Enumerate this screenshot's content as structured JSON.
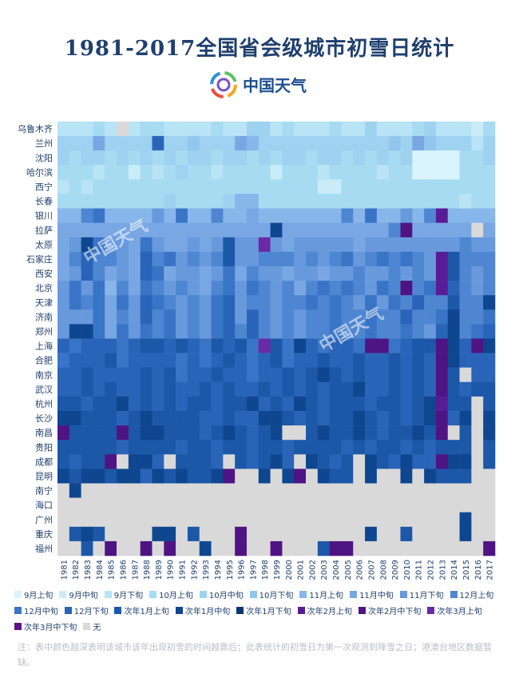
{
  "title": "1981-2017全国省会级城市初雪日统计",
  "brand": {
    "name": "中国天气",
    "logo_icon": "china-weather-logo-icon"
  },
  "note": "注：表中颜色越深表明该城市该年出现初雪的时间越靠后；此表统计的初雪日为第一次观测到降雪之日；港澳台地区数据暂缺。",
  "watermark": "中国天气",
  "chart_data": {
    "type": "heatmap",
    "title": "1981-2017全国省会级城市初雪日统计",
    "x": [
      1981,
      1982,
      1983,
      1984,
      1985,
      1986,
      1987,
      1988,
      1989,
      1990,
      1991,
      1992,
      1993,
      1994,
      1995,
      1996,
      1997,
      1998,
      1999,
      2000,
      2001,
      2002,
      2003,
      2004,
      2005,
      2006,
      2007,
      2008,
      2009,
      2010,
      2011,
      2012,
      2013,
      2014,
      2015,
      2016,
      2017
    ],
    "y": [
      "乌鲁木齐",
      "兰州",
      "沈阳",
      "哈尔滨",
      "西宁",
      "长春",
      "银川",
      "拉萨",
      "太原",
      "石家庄",
      "西安",
      "北京",
      "天津",
      "济南",
      "郑州",
      "上海",
      "合肥",
      "南京",
      "武汉",
      "杭州",
      "长沙",
      "南昌",
      "贵阳",
      "成都",
      "昆明",
      "南宁",
      "海口",
      "广州",
      "重庆",
      "福州"
    ],
    "categories": [
      "9月上旬",
      "9月中旬",
      "9月下旬",
      "10月上旬",
      "10月中旬",
      "10月下旬",
      "11月上旬",
      "11月中旬",
      "11月下旬",
      "12月上旬",
      "12月中旬",
      "12月下旬",
      "次年1月上旬",
      "次年1月中旬",
      "次年1月下旬",
      "次年2月上旬",
      "次年2月中下旬",
      "次年3月上旬",
      "次年3月中下旬",
      "无"
    ],
    "colors": [
      "#d9f4fb",
      "#c9ecf8",
      "#b8e4f5",
      "#a6dbf2",
      "#9fd2f0",
      "#92c6ee",
      "#86b6ea",
      "#79a7e4",
      "#6899dd",
      "#4f86d2",
      "#3a74c6",
      "#2a64b8",
      "#1d57a8",
      "#0f4690",
      "#0b3570",
      "#5a1c96",
      "#4f1483",
      "#6a2aa6",
      "#5b138a",
      "#d9d9d9"
    ],
    "values": [
      [
        2,
        2,
        2,
        3,
        2,
        19,
        2,
        3,
        3,
        2,
        2,
        2,
        2,
        3,
        2,
        2,
        4,
        4,
        2,
        3,
        2,
        2,
        2,
        3,
        2,
        2,
        4,
        2,
        2,
        2,
        3,
        4,
        2,
        2,
        2,
        1,
        3
      ],
      [
        4,
        4,
        4,
        7,
        4,
        4,
        4,
        4,
        11,
        4,
        4,
        5,
        4,
        4,
        4,
        7,
        6,
        4,
        4,
        4,
        4,
        4,
        4,
        4,
        4,
        4,
        4,
        4,
        5,
        4,
        7,
        5,
        4,
        4,
        4,
        2,
        4
      ],
      [
        4,
        3,
        4,
        4,
        3,
        4,
        3,
        4,
        3,
        4,
        3,
        4,
        4,
        3,
        4,
        4,
        3,
        4,
        3,
        4,
        4,
        3,
        4,
        4,
        3,
        4,
        3,
        4,
        3,
        4,
        0,
        0,
        0,
        0,
        3,
        3,
        4
      ],
      [
        3,
        3,
        3,
        2,
        3,
        3,
        1,
        3,
        2,
        3,
        4,
        3,
        3,
        2,
        3,
        3,
        3,
        3,
        1,
        3,
        3,
        3,
        2,
        3,
        3,
        3,
        3,
        2,
        3,
        3,
        0,
        0,
        0,
        0,
        3,
        3,
        3
      ],
      [
        2,
        3,
        2,
        3,
        3,
        3,
        3,
        3,
        3,
        3,
        3,
        3,
        3,
        3,
        3,
        3,
        3,
        3,
        3,
        3,
        3,
        3,
        1,
        1,
        3,
        3,
        3,
        3,
        3,
        3,
        3,
        3,
        3,
        3,
        3,
        3,
        3
      ],
      [
        3,
        3,
        3,
        3,
        3,
        3,
        3,
        3,
        3,
        4,
        3,
        3,
        3,
        3,
        4,
        6,
        6,
        3,
        3,
        3,
        3,
        3,
        3,
        3,
        3,
        3,
        3,
        3,
        3,
        3,
        3,
        3,
        3,
        3,
        2,
        3,
        3
      ],
      [
        6,
        6,
        9,
        10,
        6,
        6,
        6,
        6,
        8,
        6,
        10,
        6,
        6,
        9,
        6,
        6,
        7,
        6,
        6,
        6,
        6,
        6,
        6,
        6,
        9,
        6,
        10,
        6,
        6,
        8,
        6,
        9,
        15,
        6,
        6,
        6,
        6
      ],
      [
        7,
        7,
        7,
        7,
        7,
        7,
        7,
        7,
        7,
        7,
        7,
        7,
        7,
        7,
        7,
        7,
        7,
        7,
        13,
        7,
        7,
        7,
        7,
        7,
        7,
        7,
        7,
        7,
        9,
        16,
        7,
        7,
        7,
        7,
        7,
        19,
        7
      ],
      [
        7,
        8,
        13,
        10,
        8,
        8,
        7,
        10,
        8,
        7,
        7,
        8,
        7,
        8,
        12,
        8,
        8,
        17,
        8,
        7,
        8,
        8,
        8,
        8,
        8,
        7,
        8,
        8,
        8,
        8,
        8,
        8,
        8,
        8,
        9,
        8,
        8
      ],
      [
        7,
        9,
        11,
        9,
        9,
        8,
        7,
        11,
        9,
        10,
        8,
        9,
        8,
        9,
        12,
        8,
        8,
        9,
        9,
        9,
        8,
        9,
        8,
        9,
        10,
        8,
        9,
        10,
        9,
        10,
        9,
        8,
        15,
        12,
        9,
        9,
        9
      ],
      [
        7,
        8,
        11,
        9,
        7,
        8,
        7,
        11,
        10,
        7,
        8,
        8,
        7,
        8,
        10,
        7,
        9,
        8,
        8,
        7,
        8,
        8,
        7,
        8,
        8,
        9,
        8,
        8,
        9,
        8,
        9,
        8,
        15,
        12,
        9,
        8,
        9
      ],
      [
        8,
        10,
        8,
        10,
        6,
        9,
        7,
        10,
        9,
        8,
        9,
        8,
        7,
        9,
        10,
        8,
        10,
        9,
        8,
        9,
        7,
        9,
        10,
        9,
        10,
        9,
        8,
        10,
        9,
        16,
        9,
        10,
        15,
        11,
        9,
        8,
        9
      ],
      [
        8,
        10,
        9,
        10,
        7,
        10,
        8,
        11,
        10,
        9,
        8,
        9,
        8,
        10,
        11,
        8,
        9,
        9,
        8,
        9,
        9,
        10,
        9,
        10,
        9,
        8,
        10,
        8,
        10,
        9,
        11,
        9,
        9,
        12,
        9,
        9,
        13
      ],
      [
        8,
        8,
        8,
        10,
        7,
        9,
        8,
        11,
        9,
        10,
        8,
        9,
        8,
        10,
        11,
        8,
        11,
        9,
        8,
        9,
        8,
        9,
        9,
        10,
        9,
        9,
        10,
        9,
        9,
        11,
        9,
        9,
        10,
        13,
        9,
        9,
        10
      ],
      [
        8,
        13,
        13,
        10,
        7,
        10,
        8,
        10,
        9,
        10,
        8,
        9,
        8,
        10,
        11,
        9,
        11,
        9,
        8,
        9,
        8,
        9,
        9,
        10,
        9,
        9,
        10,
        9,
        9,
        10,
        9,
        8,
        11,
        13,
        9,
        10,
        11
      ],
      [
        11,
        10,
        11,
        11,
        11,
        10,
        11,
        12,
        12,
        11,
        12,
        11,
        10,
        12,
        11,
        12,
        10,
        17,
        12,
        10,
        13,
        11,
        10,
        11,
        11,
        10,
        16,
        16,
        10,
        11,
        12,
        12,
        16,
        13,
        11,
        16,
        13
      ],
      [
        10,
        11,
        11,
        11,
        12,
        10,
        11,
        11,
        11,
        11,
        10,
        11,
        10,
        11,
        12,
        11,
        10,
        11,
        12,
        10,
        11,
        11,
        12,
        11,
        11,
        12,
        11,
        11,
        12,
        11,
        12,
        11,
        16,
        13,
        11,
        11,
        11
      ],
      [
        11,
        11,
        12,
        11,
        11,
        11,
        11,
        12,
        11,
        12,
        10,
        11,
        11,
        12,
        11,
        11,
        10,
        11,
        11,
        12,
        11,
        12,
        13,
        12,
        11,
        12,
        11,
        11,
        12,
        11,
        12,
        11,
        16,
        12,
        19,
        11,
        11
      ],
      [
        11,
        11,
        12,
        11,
        12,
        11,
        11,
        12,
        11,
        12,
        11,
        11,
        12,
        11,
        12,
        11,
        11,
        12,
        11,
        12,
        11,
        12,
        11,
        12,
        12,
        13,
        11,
        11,
        12,
        11,
        12,
        11,
        16,
        12,
        11,
        12,
        12
      ],
      [
        12,
        12,
        11,
        12,
        12,
        13,
        11,
        12,
        11,
        12,
        11,
        12,
        12,
        11,
        12,
        12,
        13,
        11,
        12,
        11,
        13,
        12,
        11,
        12,
        12,
        12,
        11,
        12,
        12,
        11,
        12,
        13,
        15,
        12,
        12,
        19,
        12
      ],
      [
        13,
        13,
        12,
        12,
        12,
        11,
        12,
        13,
        12,
        12,
        12,
        12,
        11,
        11,
        12,
        11,
        11,
        13,
        13,
        12,
        11,
        12,
        11,
        12,
        12,
        13,
        12,
        11,
        12,
        11,
        12,
        13,
        16,
        11,
        13,
        19,
        13
      ],
      [
        16,
        12,
        12,
        12,
        12,
        16,
        12,
        13,
        13,
        12,
        12,
        12,
        11,
        12,
        13,
        12,
        11,
        12,
        13,
        19,
        19,
        12,
        13,
        12,
        12,
        13,
        12,
        11,
        12,
        12,
        13,
        12,
        16,
        19,
        12,
        19,
        13
      ],
      [
        12,
        12,
        12,
        12,
        12,
        11,
        12,
        12,
        12,
        12,
        11,
        12,
        12,
        11,
        12,
        12,
        11,
        12,
        12,
        11,
        12,
        12,
        12,
        12,
        11,
        12,
        11,
        12,
        12,
        11,
        12,
        11,
        12,
        12,
        12,
        19,
        12
      ],
      [
        12,
        11,
        12,
        12,
        16,
        19,
        13,
        13,
        11,
        19,
        12,
        12,
        12,
        11,
        19,
        12,
        11,
        12,
        13,
        11,
        19,
        13,
        12,
        11,
        12,
        19,
        13,
        12,
        11,
        13,
        11,
        11,
        16,
        13,
        13,
        19,
        12
      ],
      [
        13,
        12,
        13,
        13,
        12,
        13,
        13,
        11,
        13,
        12,
        13,
        12,
        12,
        13,
        16,
        19,
        19,
        13,
        19,
        13,
        16,
        19,
        13,
        12,
        12,
        19,
        13,
        19,
        19,
        13,
        19,
        13,
        12,
        12,
        12,
        19,
        19
      ],
      [
        19,
        13,
        19,
        19,
        19,
        19,
        19,
        19,
        19,
        19,
        19,
        19,
        19,
        19,
        19,
        19,
        19,
        19,
        19,
        19,
        19,
        19,
        19,
        19,
        19,
        19,
        19,
        19,
        19,
        19,
        19,
        19,
        19,
        19,
        19,
        19,
        19
      ],
      [
        19,
        19,
        19,
        19,
        19,
        19,
        19,
        19,
        19,
        19,
        19,
        19,
        19,
        19,
        19,
        19,
        19,
        19,
        19,
        19,
        19,
        19,
        19,
        19,
        19,
        19,
        19,
        19,
        19,
        19,
        19,
        19,
        19,
        19,
        19,
        19,
        19
      ],
      [
        19,
        19,
        19,
        19,
        19,
        19,
        19,
        19,
        19,
        19,
        19,
        19,
        19,
        19,
        19,
        19,
        19,
        19,
        19,
        19,
        19,
        19,
        19,
        19,
        19,
        19,
        19,
        19,
        19,
        19,
        19,
        19,
        19,
        19,
        13,
        19,
        19
      ],
      [
        19,
        12,
        13,
        12,
        19,
        19,
        19,
        19,
        13,
        13,
        19,
        12,
        19,
        19,
        19,
        16,
        19,
        19,
        19,
        19,
        19,
        19,
        19,
        19,
        19,
        19,
        13,
        19,
        19,
        12,
        19,
        19,
        19,
        19,
        13,
        19,
        19
      ],
      [
        19,
        19,
        12,
        19,
        16,
        19,
        19,
        16,
        19,
        16,
        19,
        19,
        13,
        19,
        19,
        16,
        19,
        19,
        16,
        19,
        19,
        19,
        12,
        16,
        16,
        19,
        19,
        19,
        19,
        19,
        19,
        19,
        19,
        19,
        19,
        19,
        16
      ]
    ],
    "xlabel": "",
    "ylabel": "",
    "legend_position": "bottom",
    "grid": false
  }
}
